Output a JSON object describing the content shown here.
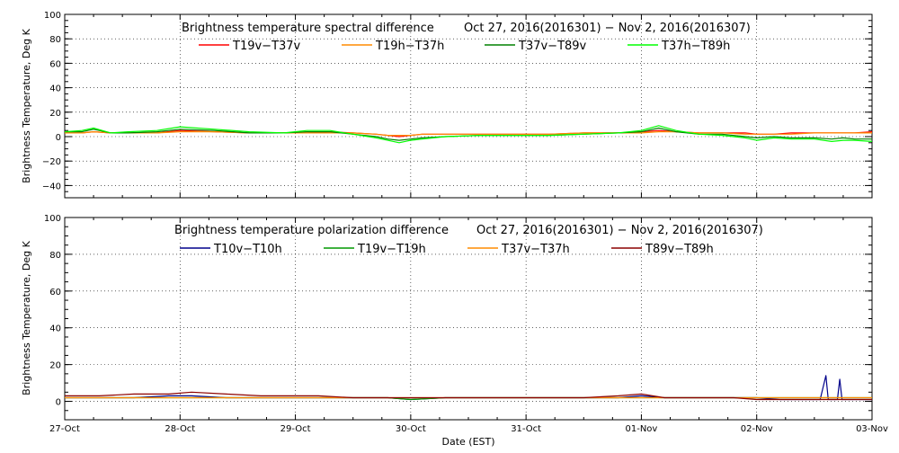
{
  "xlabel": "Date (EST)",
  "x_ticks": [
    "27-Oct",
    "28-Oct",
    "29-Oct",
    "30-Oct",
    "31-Oct",
    "01-Nov",
    "02-Nov",
    "03-Nov"
  ],
  "chart_data": [
    {
      "type": "line",
      "title": "Brightness temperature spectral difference",
      "subtitle": "Oct 27, 2016(2016301) − Nov  2, 2016(2016307)",
      "ylabel": "Brightness Temperature, Deg K",
      "xlim": [
        0,
        7
      ],
      "ylim": [
        -50,
        100
      ],
      "y_ticks": [
        "−40",
        "−20",
        "0",
        "20",
        "40",
        "60",
        "80",
        "100"
      ],
      "y_tick_values": [
        -40,
        -20,
        0,
        20,
        40,
        60,
        80,
        100
      ],
      "grid": true,
      "legend_position": "top",
      "x_days": [
        0,
        0.15,
        0.25,
        0.4,
        0.55,
        0.8,
        1.0,
        1.3,
        1.6,
        1.9,
        2.1,
        2.3,
        2.5,
        2.7,
        2.8,
        2.9,
        3.0,
        3.1,
        3.3,
        3.6,
        3.9,
        4.2,
        4.5,
        4.8,
        5.0,
        5.15,
        5.3,
        5.5,
        5.7,
        5.9,
        6.0,
        6.15,
        6.3,
        6.5,
        6.65,
        6.75,
        6.85,
        7.0
      ],
      "series": [
        {
          "name": "T19v−T37v",
          "color": "#ff0000",
          "values": [
            3,
            3,
            4,
            3,
            3,
            3,
            5,
            4,
            3,
            3,
            3,
            4,
            3,
            2,
            1,
            0,
            1,
            2,
            2,
            2,
            2,
            2,
            3,
            3,
            4,
            5,
            4,
            3,
            3,
            3,
            2,
            2,
            3,
            3,
            3,
            3,
            3,
            4
          ]
        },
        {
          "name": "T19h−T37h",
          "color": "#ff8c00",
          "values": [
            3,
            3,
            4,
            3,
            3,
            3,
            4,
            4,
            3,
            3,
            3,
            3,
            3,
            2,
            1,
            1,
            1,
            2,
            2,
            2,
            2,
            2,
            3,
            3,
            3,
            4,
            4,
            3,
            3,
            2,
            2,
            2,
            2,
            3,
            3,
            3,
            3,
            3
          ]
        },
        {
          "name": "T37v−T89v",
          "color": "#008000",
          "values": [
            4,
            4,
            6,
            3,
            3,
            4,
            6,
            5,
            3,
            3,
            4,
            4,
            2,
            0,
            -2,
            -3,
            -2,
            -1,
            0,
            1,
            1,
            1,
            2,
            3,
            4,
            7,
            4,
            2,
            2,
            0,
            -1,
            0,
            -1,
            -1,
            -2,
            -1,
            -2,
            -2
          ]
        },
        {
          "name": "T37h−T89h",
          "color": "#00ff00",
          "values": [
            4,
            5,
            7,
            3,
            4,
            5,
            8,
            6,
            4,
            3,
            5,
            5,
            2,
            -1,
            -3,
            -5,
            -3,
            -2,
            0,
            1,
            1,
            1,
            2,
            3,
            5,
            9,
            5,
            2,
            1,
            -1,
            -3,
            -1,
            -2,
            -2,
            -4,
            -3,
            -3,
            -4
          ]
        }
      ]
    },
    {
      "type": "line",
      "title": "Brightness temperature polarization difference",
      "subtitle": "Oct 27, 2016(2016301) − Nov  2, 2016(2016307)",
      "ylabel": "Brightness Temperature, Deg K",
      "xlim": [
        0,
        7
      ],
      "ylim": [
        -10,
        100
      ],
      "y_ticks": [
        "0",
        "20",
        "40",
        "60",
        "80",
        "100"
      ],
      "y_tick_values": [
        0,
        20,
        40,
        60,
        80,
        100
      ],
      "grid": true,
      "legend_position": "top",
      "x_days": [
        0,
        0.3,
        0.6,
        0.9,
        1.1,
        1.4,
        1.7,
        2.0,
        2.2,
        2.5,
        2.8,
        3.0,
        3.3,
        3.6,
        3.9,
        4.2,
        4.5,
        4.8,
        5.0,
        5.2,
        5.5,
        5.8,
        6.0,
        6.2,
        6.4,
        6.55,
        6.6,
        6.62,
        6.7,
        6.72,
        6.74,
        6.85,
        7.0
      ],
      "series": [
        {
          "name": "T10v−T10h",
          "color": "#00008b",
          "values": [
            2,
            2,
            2,
            3,
            3,
            2,
            2,
            2,
            2,
            2,
            2,
            1,
            2,
            2,
            2,
            2,
            2,
            2,
            3,
            2,
            2,
            2,
            2,
            1,
            1,
            1,
            14,
            1,
            1,
            12,
            1,
            1,
            1
          ]
        },
        {
          "name": "T19v−T19h",
          "color": "#009900",
          "values": [
            2,
            2,
            2,
            2,
            2,
            2,
            2,
            2,
            2,
            2,
            2,
            1,
            2,
            2,
            2,
            2,
            2,
            2,
            2,
            2,
            2,
            2,
            2,
            2,
            2,
            2,
            2,
            2,
            2,
            2,
            2,
            2,
            2
          ]
        },
        {
          "name": "T37v−T37h",
          "color": "#ff8c00",
          "values": [
            2,
            2,
            2,
            2,
            2,
            2,
            2,
            2,
            2,
            2,
            2,
            2,
            2,
            2,
            2,
            2,
            2,
            2,
            2,
            2,
            2,
            2,
            2,
            2,
            2,
            2,
            2,
            2,
            2,
            2,
            2,
            2,
            2
          ]
        },
        {
          "name": "T89v−T89h",
          "color": "#8b0000",
          "values": [
            3,
            3,
            4,
            4,
            5,
            4,
            3,
            3,
            3,
            2,
            2,
            2,
            2,
            2,
            2,
            2,
            2,
            3,
            4,
            2,
            2,
            2,
            1,
            1,
            1,
            1,
            1,
            1,
            1,
            1,
            1,
            1,
            1
          ]
        }
      ]
    }
  ]
}
